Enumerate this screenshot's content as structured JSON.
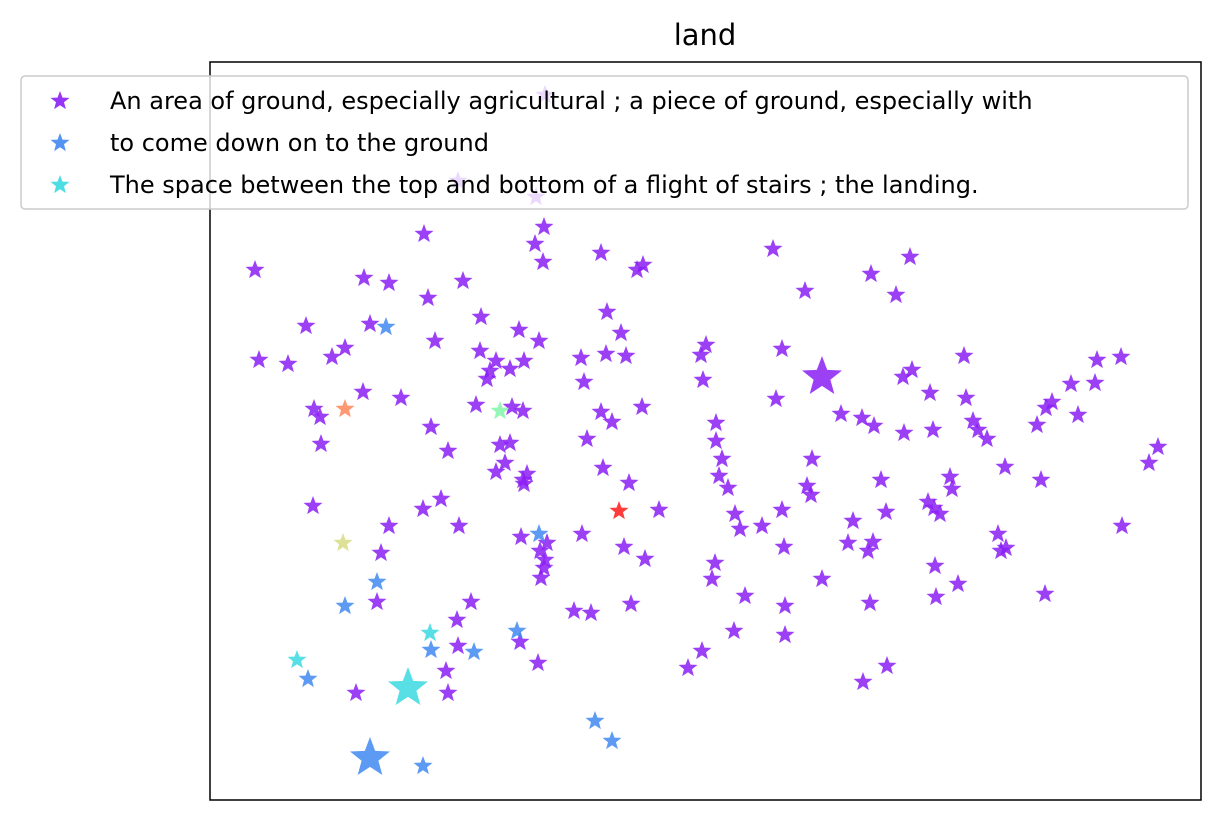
{
  "chart_data": {
    "type": "scatter",
    "title": "land",
    "xlabel": "",
    "ylabel": "",
    "ticks_visible": false,
    "grid": false,
    "legend_placement": "top-left",
    "legend": [
      {
        "label": "An area of ground, especially agricultural ; a piece of ground, especially with",
        "color": "#8b1ff5"
      },
      {
        "label": "to come down on to the ground",
        "color": "#4088f2"
      },
      {
        "label": "The space between the top and bottom of a flight of stairs ; the landing.",
        "color": "#3ad9e0"
      }
    ],
    "series": [
      {
        "color": "#8b1ff5",
        "points": [
          [
            545,
            95
          ],
          [
            458,
            181
          ],
          [
            536,
            197
          ],
          [
            544,
            227
          ],
          [
            535,
            244
          ],
          [
            543,
            262
          ],
          [
            424,
            234
          ],
          [
            255,
            270
          ],
          [
            364,
            278
          ],
          [
            389,
            283
          ],
          [
            463,
            281
          ],
          [
            428,
            298
          ],
          [
            601,
            253
          ],
          [
            637,
            270
          ],
          [
            643,
            265
          ],
          [
            773,
            249
          ],
          [
            805,
            291
          ],
          [
            871,
            274
          ],
          [
            896,
            295
          ],
          [
            910,
            257
          ],
          [
            607,
            312
          ],
          [
            306,
            326
          ],
          [
            370,
            324
          ],
          [
            481,
            317
          ],
          [
            519,
            330
          ],
          [
            621,
            333
          ],
          [
            259,
            360
          ],
          [
            288,
            364
          ],
          [
            332,
            357
          ],
          [
            345,
            348
          ],
          [
            435,
            341
          ],
          [
            480,
            351
          ],
          [
            496,
            361
          ],
          [
            510,
            369
          ],
          [
            524,
            361
          ],
          [
            539,
            341
          ],
          [
            581,
            358
          ],
          [
            606,
            354
          ],
          [
            626,
            356
          ],
          [
            584,
            382
          ],
          [
            701,
            355
          ],
          [
            706,
            345
          ],
          [
            703,
            380
          ],
          [
            782,
            349
          ],
          [
            964,
            356
          ],
          [
            1097,
            360
          ],
          [
            1121,
            357
          ],
          [
            903,
            377
          ],
          [
            912,
            370
          ],
          [
            1071,
            384
          ],
          [
            1095,
            383
          ],
          [
            363,
            392
          ],
          [
            401,
            398
          ],
          [
            487,
            379
          ],
          [
            490,
            371
          ],
          [
            476,
            405
          ],
          [
            512,
            407
          ],
          [
            523,
            411
          ],
          [
            314,
            409
          ],
          [
            320,
            417
          ],
          [
            601,
            412
          ],
          [
            612,
            422
          ],
          [
            642,
            407
          ],
          [
            776,
            399
          ],
          [
            841,
            414
          ],
          [
            862,
            418
          ],
          [
            874,
            426
          ],
          [
            904,
            433
          ],
          [
            930,
            393
          ],
          [
            933,
            430
          ],
          [
            966,
            398
          ],
          [
            973,
            421
          ],
          [
            978,
            430
          ],
          [
            987,
            439
          ],
          [
            1037,
            425
          ],
          [
            1046,
            408
          ],
          [
            1052,
            402
          ],
          [
            1078,
            415
          ],
          [
            1158,
            447
          ],
          [
            1149,
            463
          ],
          [
            321,
            444
          ],
          [
            431,
            427
          ],
          [
            448,
            451
          ],
          [
            500,
            445
          ],
          [
            510,
            443
          ],
          [
            505,
            463
          ],
          [
            496,
            472
          ],
          [
            523,
            480
          ],
          [
            527,
            474
          ],
          [
            524,
            484
          ],
          [
            587,
            439
          ],
          [
            716,
            423
          ],
          [
            716,
            441
          ],
          [
            722,
            459
          ],
          [
            719,
            476
          ],
          [
            728,
            488
          ],
          [
            812,
            459
          ],
          [
            603,
            468
          ],
          [
            629,
            483
          ],
          [
            807,
            486
          ],
          [
            811,
            495
          ],
          [
            881,
            480
          ],
          [
            950,
            477
          ],
          [
            952,
            489
          ],
          [
            1005,
            467
          ],
          [
            1041,
            480
          ],
          [
            313,
            506
          ],
          [
            423,
            509
          ],
          [
            441,
            499
          ],
          [
            459,
            526
          ],
          [
            389,
            526
          ],
          [
            521,
            537
          ],
          [
            547,
            543
          ],
          [
            540,
            551
          ],
          [
            545,
            560
          ],
          [
            541,
            578
          ],
          [
            582,
            534
          ],
          [
            624,
            547
          ],
          [
            645,
            559
          ],
          [
            659,
            510
          ],
          [
            735,
            514
          ],
          [
            740,
            529
          ],
          [
            762,
            526
          ],
          [
            782,
            510
          ],
          [
            853,
            521
          ],
          [
            886,
            512
          ],
          [
            928,
            502
          ],
          [
            934,
            508
          ],
          [
            940,
            514
          ],
          [
            998,
            534
          ],
          [
            1001,
            551
          ],
          [
            1006,
            548
          ],
          [
            1122,
            526
          ],
          [
            381,
            553
          ],
          [
            544,
            568
          ],
          [
            715,
            563
          ],
          [
            712,
            579
          ],
          [
            784,
            547
          ],
          [
            822,
            579
          ],
          [
            848,
            543
          ],
          [
            868,
            551
          ],
          [
            873,
            542
          ],
          [
            935,
            566
          ],
          [
            958,
            584
          ],
          [
            377,
            602
          ],
          [
            471,
            602
          ],
          [
            457,
            620
          ],
          [
            574,
            611
          ],
          [
            591,
            613
          ],
          [
            631,
            604
          ],
          [
            745,
            596
          ],
          [
            785,
            606
          ],
          [
            870,
            603
          ],
          [
            936,
            597
          ],
          [
            1045,
            594
          ],
          [
            520,
            642
          ],
          [
            458,
            646
          ],
          [
            446,
            671
          ],
          [
            356,
            693
          ],
          [
            448,
            693
          ],
          [
            538,
            663
          ],
          [
            688,
            668
          ],
          [
            702,
            651
          ],
          [
            734,
            631
          ],
          [
            785,
            635
          ],
          [
            863,
            682
          ],
          [
            887,
            666
          ]
        ]
      },
      {
        "color": "#4088f2",
        "points": [
          [
            386,
            327
          ],
          [
            539,
            534
          ],
          [
            377,
            582
          ],
          [
            345,
            606
          ],
          [
            517,
            631
          ],
          [
            431,
            650
          ],
          [
            474,
            652
          ],
          [
            308,
            679
          ],
          [
            595,
            721
          ],
          [
            612,
            741
          ],
          [
            423,
            766
          ]
        ]
      },
      {
        "color": "#3ad9e0",
        "points": [
          [
            430,
            633
          ],
          [
            297,
            660
          ]
        ]
      },
      {
        "color": "#ff8658",
        "points": [
          [
            345,
            409
          ]
        ]
      },
      {
        "color": "#84f5a8",
        "points": [
          [
            500,
            411
          ]
        ]
      },
      {
        "color": "#d7dc86",
        "points": [
          [
            343,
            543
          ]
        ]
      },
      {
        "color": "#ff1a1a",
        "points": [
          [
            619,
            511
          ]
        ]
      }
    ],
    "highlighted": [
      {
        "x": 822,
        "y": 377,
        "color": "#8b1ff5"
      },
      {
        "x": 408,
        "y": 688,
        "color": "#3ad9e0"
      },
      {
        "x": 370,
        "y": 758,
        "color": "#4088f2"
      }
    ]
  }
}
